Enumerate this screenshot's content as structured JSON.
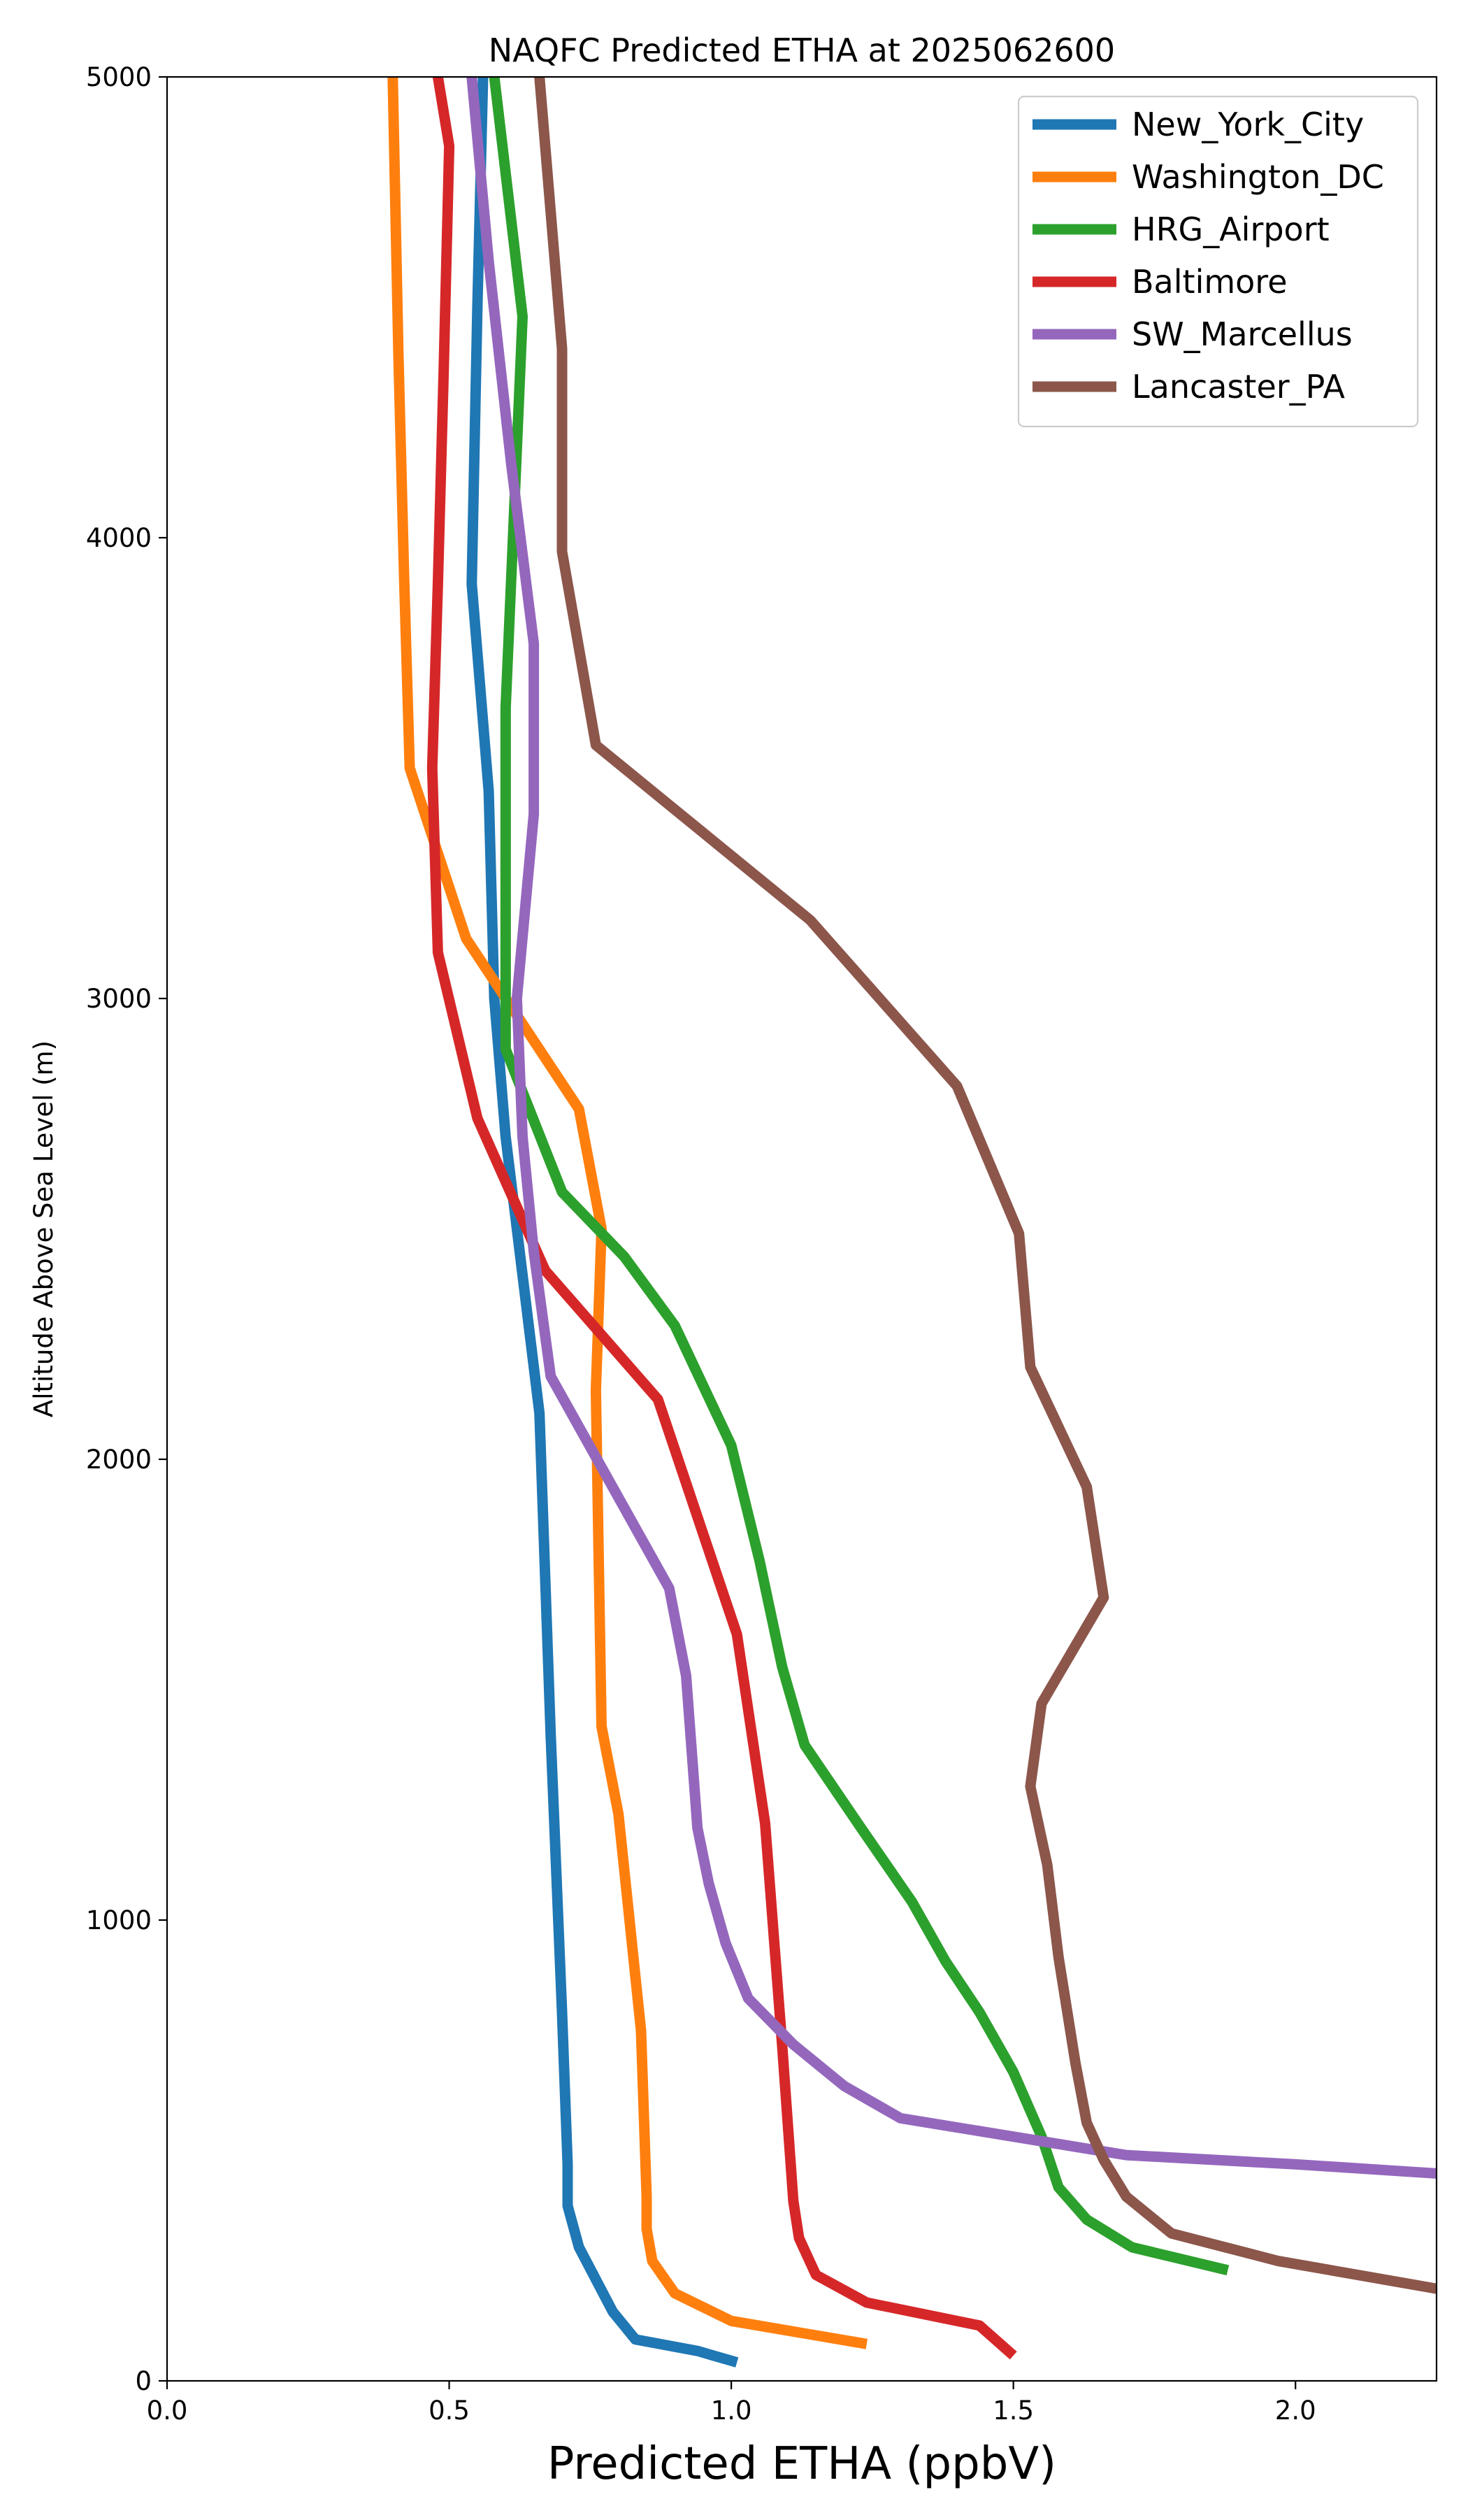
{
  "chart_data": {
    "type": "line",
    "title": "NAQFC Predicted ETHA at 2025062600",
    "xlabel": "Predicted ETHA (ppbV)",
    "ylabel": "Altitude Above Sea Level (m)",
    "xlim": [
      0.0,
      2.25
    ],
    "ylim": [
      0,
      5000
    ],
    "xticks": [
      0.0,
      0.5,
      1.0,
      1.5,
      2.0
    ],
    "xtick_labels": [
      "0.0",
      "0.5",
      "1.0",
      "1.5",
      "2.0"
    ],
    "yticks": [
      0,
      1000,
      2000,
      3000,
      4000,
      5000
    ],
    "ytick_labels": [
      "0",
      "1000",
      "2000",
      "3000",
      "4000",
      "5000"
    ],
    "grid": false,
    "legend_position": "top-right",
    "series": [
      {
        "name": "New_York_City",
        "color": "#1f77b4",
        "points": [
          [
            1.01,
            40
          ],
          [
            0.94,
            65
          ],
          [
            0.83,
            90
          ],
          [
            0.79,
            150
          ],
          [
            0.76,
            220
          ],
          [
            0.73,
            290
          ],
          [
            0.71,
            380
          ],
          [
            0.71,
            470
          ],
          [
            0.7,
            800
          ],
          [
            0.68,
            1400
          ],
          [
            0.66,
            2100
          ],
          [
            0.62,
            2500
          ],
          [
            0.6,
            2700
          ],
          [
            0.58,
            3000
          ],
          [
            0.57,
            3450
          ],
          [
            0.54,
            3900
          ],
          [
            0.55,
            4500
          ],
          [
            0.56,
            5000
          ]
        ]
      },
      {
        "name": "Washington_DC",
        "color": "#ff7f0e",
        "points": [
          [
            1.24,
            80
          ],
          [
            1.0,
            130
          ],
          [
            0.9,
            190
          ],
          [
            0.86,
            260
          ],
          [
            0.85,
            330
          ],
          [
            0.85,
            400
          ],
          [
            0.84,
            760
          ],
          [
            0.8,
            1230
          ],
          [
            0.77,
            1420
          ],
          [
            0.76,
            2150
          ],
          [
            0.77,
            2500
          ],
          [
            0.73,
            2760
          ],
          [
            0.53,
            3130
          ],
          [
            0.43,
            3500
          ],
          [
            0.42,
            3920
          ],
          [
            0.41,
            4400
          ],
          [
            0.4,
            5000
          ]
        ]
      },
      {
        "name": "HRG_Airport",
        "color": "#2ca02c",
        "points": [
          [
            1.88,
            240
          ],
          [
            1.71,
            290
          ],
          [
            1.63,
            350
          ],
          [
            1.58,
            420
          ],
          [
            1.55,
            530
          ],
          [
            1.5,
            670
          ],
          [
            1.44,
            800
          ],
          [
            1.38,
            910
          ],
          [
            1.32,
            1040
          ],
          [
            1.23,
            1200
          ],
          [
            1.13,
            1380
          ],
          [
            1.09,
            1550
          ],
          [
            1.05,
            1780
          ],
          [
            1.0,
            2030
          ],
          [
            0.9,
            2290
          ],
          [
            0.81,
            2440
          ],
          [
            0.7,
            2580
          ],
          [
            0.6,
            2890
          ],
          [
            0.6,
            3630
          ],
          [
            0.63,
            4480
          ],
          [
            0.58,
            5000
          ]
        ]
      },
      {
        "name": "Baltimore",
        "color": "#d62728",
        "points": [
          [
            1.5,
            55
          ],
          [
            1.44,
            120
          ],
          [
            1.24,
            170
          ],
          [
            1.15,
            230
          ],
          [
            1.12,
            310
          ],
          [
            1.11,
            390
          ],
          [
            1.09,
            730
          ],
          [
            1.06,
            1210
          ],
          [
            1.01,
            1620
          ],
          [
            0.87,
            2130
          ],
          [
            0.67,
            2410
          ],
          [
            0.55,
            2740
          ],
          [
            0.48,
            3100
          ],
          [
            0.47,
            3500
          ],
          [
            0.48,
            3900
          ],
          [
            0.49,
            4350
          ],
          [
            0.5,
            4850
          ],
          [
            0.48,
            5000
          ]
        ]
      },
      {
        "name": "SW_Marcellus",
        "color": "#9467bd",
        "points": [
          [
            2.25,
            450
          ],
          [
            2.0,
            470
          ],
          [
            1.7,
            490
          ],
          [
            1.55,
            520
          ],
          [
            1.3,
            570
          ],
          [
            1.2,
            640
          ],
          [
            1.11,
            730
          ],
          [
            1.03,
            830
          ],
          [
            0.99,
            950
          ],
          [
            0.96,
            1080
          ],
          [
            0.94,
            1200
          ],
          [
            0.92,
            1530
          ],
          [
            0.89,
            1720
          ],
          [
            0.68,
            2180
          ],
          [
            0.65,
            2450
          ],
          [
            0.63,
            2700
          ],
          [
            0.62,
            3000
          ],
          [
            0.65,
            3400
          ],
          [
            0.65,
            3770
          ],
          [
            0.61,
            4160
          ],
          [
            0.57,
            4600
          ],
          [
            0.54,
            5000
          ]
        ]
      },
      {
        "name": "Lancaster_PA",
        "color": "#8c564b",
        "points": [
          [
            2.25,
            200
          ],
          [
            1.97,
            260
          ],
          [
            1.78,
            320
          ],
          [
            1.7,
            400
          ],
          [
            1.66,
            480
          ],
          [
            1.63,
            560
          ],
          [
            1.61,
            690
          ],
          [
            1.58,
            920
          ],
          [
            1.56,
            1120
          ],
          [
            1.53,
            1290
          ],
          [
            1.55,
            1470
          ],
          [
            1.66,
            1700
          ],
          [
            1.63,
            1940
          ],
          [
            1.53,
            2200
          ],
          [
            1.51,
            2490
          ],
          [
            1.4,
            2810
          ],
          [
            1.14,
            3170
          ],
          [
            0.76,
            3550
          ],
          [
            0.7,
            3970
          ],
          [
            0.7,
            4410
          ],
          [
            0.66,
            5000
          ]
        ]
      }
    ]
  }
}
